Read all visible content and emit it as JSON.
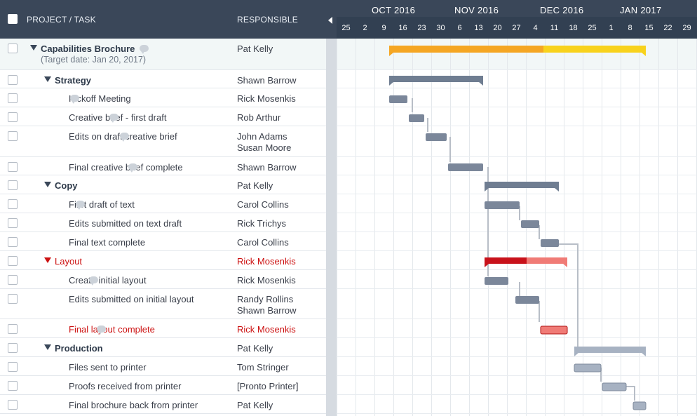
{
  "header": {
    "task_col": "PROJECT / TASK",
    "responsible_col": "RESPONSIBLE"
  },
  "timeline": {
    "months": [
      "OCT 2016",
      "NOV 2016",
      "DEC 2016",
      "JAN 2017"
    ],
    "days": [
      "25",
      "2",
      "9",
      "16",
      "23",
      "30",
      "6",
      "13",
      "20",
      "27",
      "4",
      "11",
      "18",
      "25",
      "1",
      "8",
      "15",
      "22",
      "29"
    ]
  },
  "rows": [
    {
      "task": "Capabilities Brochure",
      "sub": "(Target date: Jan 20, 2017)",
      "responsible": [
        "Pat Kelly"
      ],
      "level": 0,
      "group": true,
      "comment": true
    },
    {
      "task": "Strategy",
      "responsible": [
        "Shawn Barrow"
      ],
      "level": 1,
      "group": true,
      "comment": false
    },
    {
      "task": "Kickoff Meeting",
      "responsible": [
        "Rick Mosenkis"
      ],
      "level": 2,
      "group": false,
      "comment": true
    },
    {
      "task": "Creative brief - first draft",
      "responsible": [
        "Rob Arthur"
      ],
      "level": 2,
      "group": false,
      "comment": true
    },
    {
      "task": "Edits on draft creative brief",
      "responsible": [
        "John Adams",
        "Susan Moore"
      ],
      "level": 2,
      "group": false,
      "comment": true
    },
    {
      "task": "Final creative brief complete",
      "responsible": [
        "Shawn Barrow"
      ],
      "level": 2,
      "group": false,
      "comment": true
    },
    {
      "task": "Copy",
      "responsible": [
        "Pat Kelly"
      ],
      "level": 1,
      "group": true,
      "comment": false
    },
    {
      "task": "First draft of text",
      "responsible": [
        "Carol Collins"
      ],
      "level": 2,
      "group": false,
      "comment": true
    },
    {
      "task": "Edits submitted on text draft",
      "responsible": [
        "Rick Trichys"
      ],
      "level": 2,
      "group": false,
      "comment": false
    },
    {
      "task": "Final text complete",
      "responsible": [
        "Carol Collins"
      ],
      "level": 2,
      "group": false,
      "comment": false
    },
    {
      "task": "Layout",
      "responsible": [
        "Rick Mosenkis"
      ],
      "level": 1,
      "group": true,
      "comment": false,
      "critical": true
    },
    {
      "task": "Create initial layout",
      "responsible": [
        "Rick Mosenkis"
      ],
      "level": 2,
      "group": false,
      "comment": true
    },
    {
      "task": "Edits submitted on initial layout",
      "responsible": [
        "Randy Rollins",
        "Shawn Barrow"
      ],
      "level": 2,
      "group": false,
      "comment": false
    },
    {
      "task": "Final layout complete",
      "responsible": [
        "Rick Mosenkis"
      ],
      "level": 2,
      "group": false,
      "comment": true,
      "critical": true
    },
    {
      "task": "Production",
      "responsible": [
        "Pat Kelly"
      ],
      "level": 1,
      "group": true,
      "comment": false
    },
    {
      "task": "Files sent to printer",
      "responsible": [
        "Tom Stringer"
      ],
      "level": 2,
      "group": false,
      "comment": false
    },
    {
      "task": "Proofs received from printer",
      "responsible": [
        "[Pronto Printer]"
      ],
      "level": 2,
      "group": false,
      "comment": false
    },
    {
      "task": "Final brochure back from printer",
      "responsible": [
        "Pat Kelly"
      ],
      "level": 2,
      "group": false,
      "comment": false
    }
  ],
  "colors": {
    "header_bg": "#3a4759",
    "summary_orange": "#f5a623",
    "summary_yellow": "#f8d21c",
    "group_bar": "#6f7d91",
    "task_bar": "#7b879a",
    "critical_dark": "#c8121b",
    "critical_light": "#f07b76",
    "production_bar": "#a7b2c2",
    "critical_text": "#cc1111"
  }
}
